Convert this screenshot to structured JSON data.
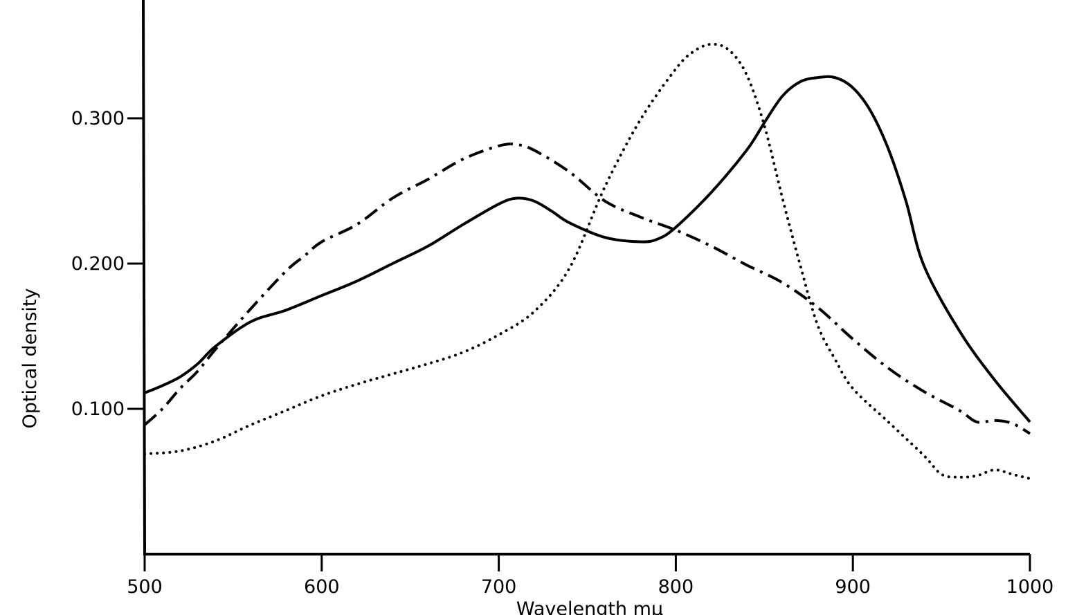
{
  "chart_data": {
    "type": "line",
    "title": "",
    "xlabel": "Wavelength mμ",
    "ylabel": "Optical density",
    "xlim": [
      500,
      1000
    ],
    "ylim": [
      0.0,
      0.37
    ],
    "grid": false,
    "legend": "none",
    "x_ticks": [
      {
        "value": 500,
        "label": "500"
      },
      {
        "value": 600,
        "label": "600"
      },
      {
        "value": 700,
        "label": "700"
      },
      {
        "value": 800,
        "label": "800"
      },
      {
        "value": 900,
        "label": "900"
      },
      {
        "value": 1000,
        "label": "1000"
      }
    ],
    "y_ticks": [
      {
        "value": 0.1,
        "label": "0.100"
      },
      {
        "value": 0.2,
        "label": "0.200"
      },
      {
        "value": 0.3,
        "label": "0.300"
      }
    ],
    "series": [
      {
        "style": "solid",
        "x": [
          500,
          510,
          520,
          530,
          540,
          560,
          580,
          600,
          620,
          640,
          660,
          680,
          700,
          710,
          720,
          730,
          740,
          760,
          780,
          790,
          800,
          820,
          840,
          850,
          860,
          870,
          880,
          890,
          900,
          910,
          920,
          930,
          940,
          960,
          980,
          1000
        ],
        "y": [
          0.111,
          0.116,
          0.122,
          0.131,
          0.143,
          0.16,
          0.168,
          0.178,
          0.188,
          0.2,
          0.212,
          0.227,
          0.241,
          0.245,
          0.243,
          0.236,
          0.228,
          0.218,
          0.215,
          0.217,
          0.225,
          0.249,
          0.278,
          0.297,
          0.315,
          0.325,
          0.328,
          0.328,
          0.321,
          0.305,
          0.279,
          0.243,
          0.199,
          0.154,
          0.12,
          0.091
        ]
      },
      {
        "style": "dash-dot",
        "x": [
          500,
          510,
          520,
          530,
          540,
          560,
          580,
          590,
          600,
          620,
          640,
          660,
          680,
          700,
          710,
          720,
          740,
          760,
          780,
          800,
          820,
          840,
          860,
          880,
          900,
          920,
          940,
          960,
          970,
          980,
          990,
          1000
        ],
        "y": [
          0.089,
          0.1,
          0.114,
          0.126,
          0.141,
          0.169,
          0.195,
          0.205,
          0.215,
          0.227,
          0.245,
          0.258,
          0.272,
          0.281,
          0.282,
          0.278,
          0.263,
          0.243,
          0.232,
          0.223,
          0.212,
          0.199,
          0.187,
          0.17,
          0.148,
          0.128,
          0.112,
          0.099,
          0.091,
          0.092,
          0.09,
          0.083
        ]
      },
      {
        "style": "dotted",
        "x": [
          500,
          520,
          540,
          560,
          580,
          600,
          620,
          640,
          660,
          680,
          700,
          720,
          740,
          760,
          780,
          800,
          810,
          820,
          830,
          840,
          850,
          860,
          870,
          880,
          890,
          900,
          920,
          940,
          950,
          960,
          970,
          980,
          990,
          1000
        ],
        "y": [
          0.069,
          0.071,
          0.078,
          0.089,
          0.099,
          0.109,
          0.117,
          0.124,
          0.131,
          0.139,
          0.151,
          0.167,
          0.197,
          0.253,
          0.299,
          0.334,
          0.346,
          0.351,
          0.347,
          0.33,
          0.295,
          0.246,
          0.2,
          0.158,
          0.134,
          0.114,
          0.091,
          0.068,
          0.055,
          0.053,
          0.054,
          0.058,
          0.055,
          0.052
        ]
      }
    ]
  }
}
